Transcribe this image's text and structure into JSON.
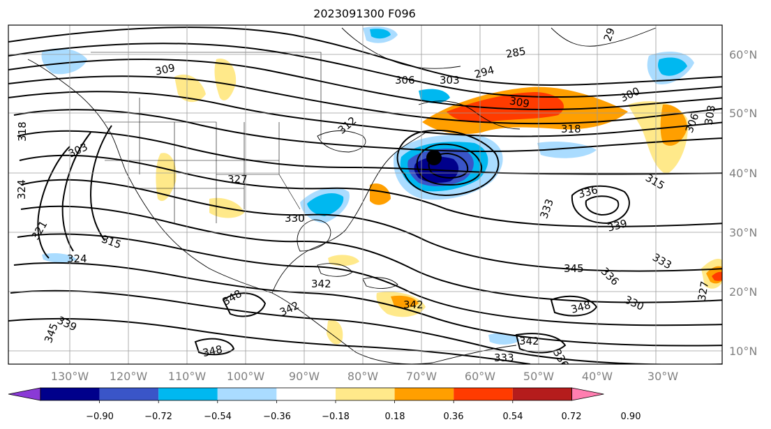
{
  "title": "2023091300 F096",
  "lon_labels": [
    "130°W",
    "120°W",
    "110°W",
    "100°W",
    "90°W",
    "80°W",
    "70°W",
    "60°W",
    "50°W",
    "40°W",
    "30°W"
  ],
  "lat_labels": [
    "60°N",
    "50°N",
    "40°N",
    "30°N",
    "20°N",
    "10°N"
  ],
  "colorbar": {
    "ticks": [
      "−0.90",
      "−0.72",
      "−0.54",
      "−0.36",
      "−0.18",
      "0.18",
      "0.36",
      "0.54",
      "0.72",
      "0.90"
    ],
    "colors": [
      "#8a3ad6",
      "#00008b",
      "#3a55c8",
      "#00b8f0",
      "#aadcff",
      "#ffffff",
      "#ffe98a",
      "#ff9f00",
      "#ff3b00",
      "#b51c1c",
      "#ff7eb0"
    ]
  },
  "contour_labels": [
    {
      "text": "309"
    },
    {
      "text": "303"
    },
    {
      "text": "318"
    },
    {
      "text": "324"
    },
    {
      "text": "321"
    },
    {
      "text": "315"
    },
    {
      "text": "324"
    },
    {
      "text": "345"
    },
    {
      "text": "339"
    },
    {
      "text": "348"
    },
    {
      "text": "327"
    },
    {
      "text": "330"
    },
    {
      "text": "312"
    },
    {
      "text": "306"
    },
    {
      "text": "303"
    },
    {
      "text": "294"
    },
    {
      "text": "285"
    },
    {
      "text": "309"
    },
    {
      "text": "300"
    },
    {
      "text": "318"
    },
    {
      "text": "306"
    },
    {
      "text": "303"
    },
    {
      "text": "315"
    },
    {
      "text": "336"
    },
    {
      "text": "339"
    },
    {
      "text": "333"
    },
    {
      "text": "333"
    },
    {
      "text": "336"
    },
    {
      "text": "330"
    },
    {
      "text": "345"
    },
    {
      "text": "348"
    },
    {
      "text": "342"
    },
    {
      "text": "342"
    },
    {
      "text": "342"
    },
    {
      "text": "348"
    },
    {
      "text": "342"
    },
    {
      "text": "333"
    },
    {
      "text": "336"
    },
    {
      "text": "327"
    },
    {
      "text": "29"
    }
  ]
}
